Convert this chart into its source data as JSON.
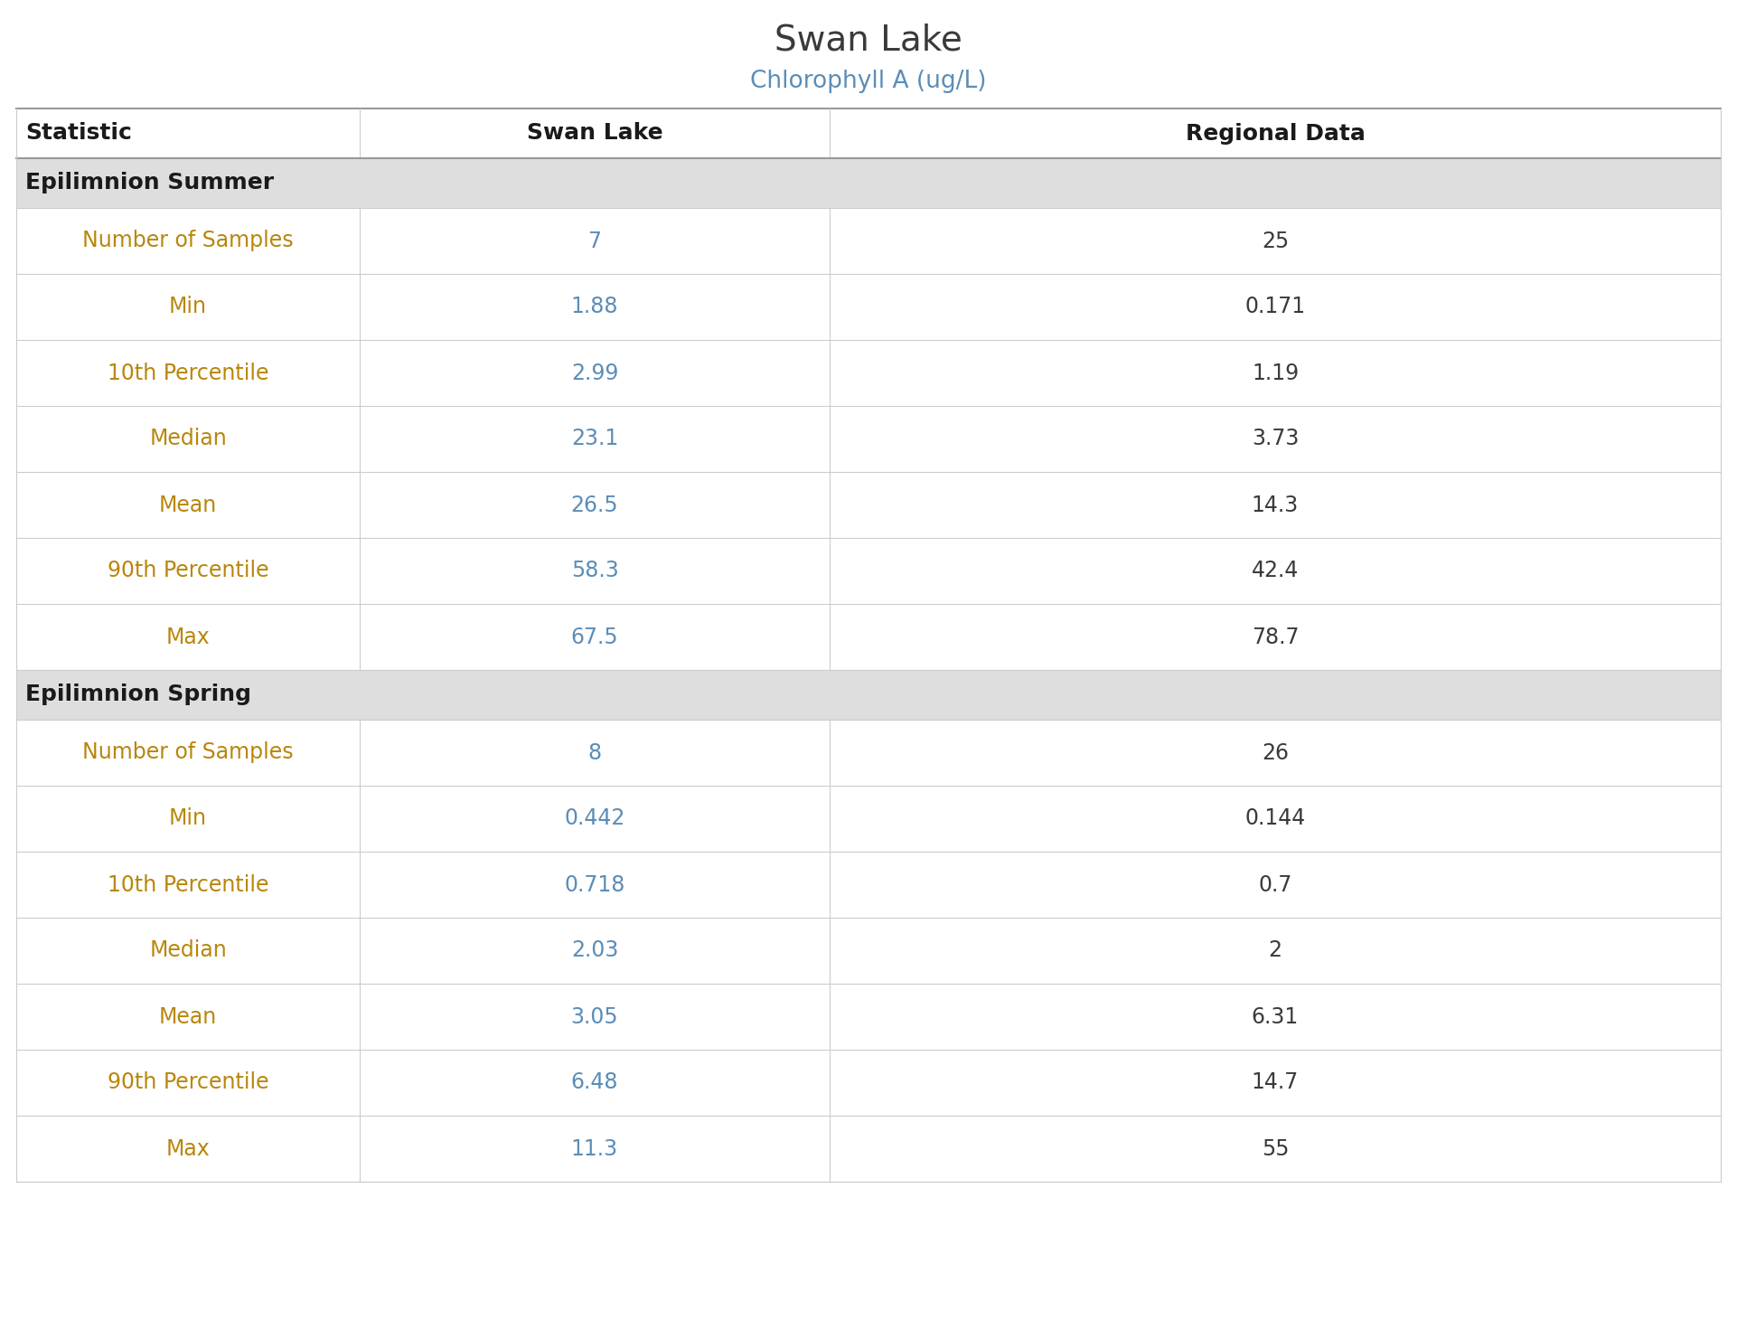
{
  "title": "Swan Lake",
  "subtitle": "Chlorophyll A (ug/L)",
  "title_color": "#3a3a3a",
  "subtitle_color": "#5b8db8",
  "col_headers": [
    "Statistic",
    "Swan Lake",
    "Regional Data"
  ],
  "col_header_color": "#1a1a1a",
  "section_headers": [
    "Epilimnion Summer",
    "Epilimnion Spring"
  ],
  "section_header_bg": "#dedede",
  "section_header_color": "#1a1a1a",
  "rows_summer": [
    [
      "Number of Samples",
      "7",
      "25"
    ],
    [
      "Min",
      "1.88",
      "0.171"
    ],
    [
      "10th Percentile",
      "2.99",
      "1.19"
    ],
    [
      "Median",
      "23.1",
      "3.73"
    ],
    [
      "Mean",
      "26.5",
      "14.3"
    ],
    [
      "90th Percentile",
      "58.3",
      "42.4"
    ],
    [
      "Max",
      "67.5",
      "78.7"
    ]
  ],
  "rows_spring": [
    [
      "Number of Samples",
      "8",
      "26"
    ],
    [
      "Min",
      "0.442",
      "0.144"
    ],
    [
      "10th Percentile",
      "0.718",
      "0.7"
    ],
    [
      "Median",
      "2.03",
      "2"
    ],
    [
      "Mean",
      "3.05",
      "6.31"
    ],
    [
      "90th Percentile",
      "6.48",
      "14.7"
    ],
    [
      "Max",
      "11.3",
      "55"
    ]
  ],
  "stat_col_color": "#b8860b",
  "value_swan_color": "#5b8db8",
  "value_regional_color": "#3a3a3a",
  "row_bg_white": "#ffffff",
  "border_color": "#cccccc",
  "top_border_color": "#999999",
  "fig_width": 19.22,
  "fig_height": 14.6,
  "dpi": 100
}
